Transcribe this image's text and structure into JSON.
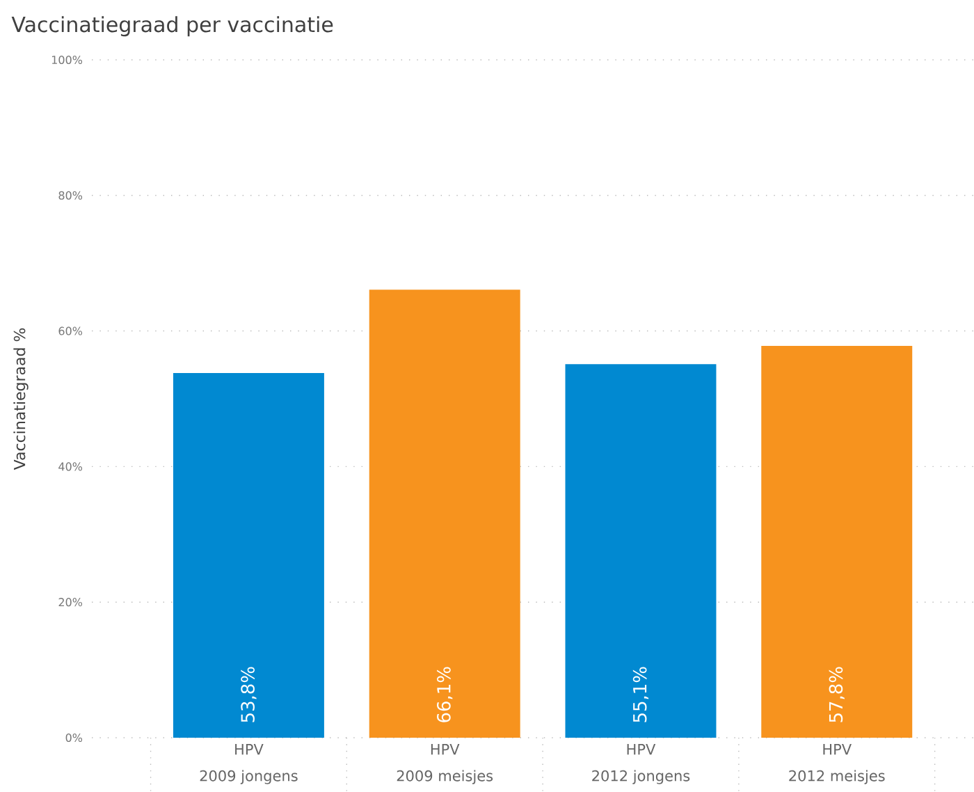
{
  "chart_data": {
    "type": "bar",
    "title": "Vaccinatiegraad per vaccinatie",
    "ylabel": "Vaccinatiegraad %",
    "categories": [
      "HPV\n2009 jongens",
      "HPV\n2009 meisjes",
      "HPV\n2012 jongens",
      "HPV\n2012 meisjes"
    ],
    "values": [
      53.8,
      66.1,
      55.1,
      57.8
    ],
    "colors": [
      "#0189d1",
      "#f7931e",
      "#0189d1",
      "#f7931e"
    ],
    "value_labels": [
      "53,8%",
      "66,1%",
      "55,1%",
      "57,8%"
    ],
    "ylim": [
      0,
      100
    ],
    "yticks": [
      {
        "value": 0,
        "label": "0%"
      },
      {
        "value": 20,
        "label": "20%"
      },
      {
        "value": 40,
        "label": "40%"
      },
      {
        "value": 60,
        "label": "60%"
      },
      {
        "value": 80,
        "label": "80%"
      },
      {
        "value": 100,
        "label": "100%"
      }
    ],
    "grid": "y"
  }
}
